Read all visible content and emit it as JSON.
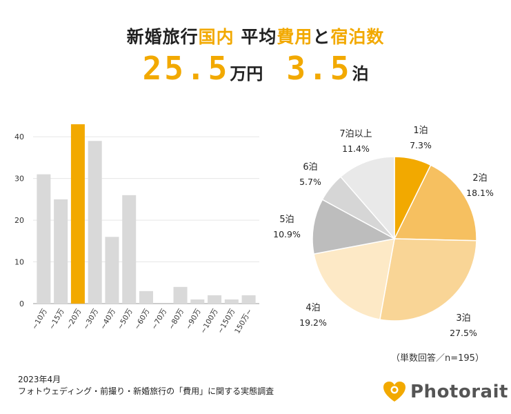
{
  "headline": {
    "part1": "新婚旅行",
    "part2": "国内",
    "part3": " 平均",
    "part4": "費用",
    "part5": "と",
    "part6": "宿泊数"
  },
  "stats": {
    "cost_value": "25.5",
    "cost_unit": "万円",
    "nights_value": "3.5",
    "nights_unit": "泊"
  },
  "colors": {
    "accent": "#f2a900",
    "bar_default": "#d9d9d9"
  },
  "chart_data": [
    {
      "type": "bar",
      "title": "",
      "xlabel": "",
      "ylabel": "",
      "ylim": [
        0,
        45
      ],
      "yticks": [
        0,
        10,
        20,
        30,
        40
      ],
      "grid": true,
      "categories": [
        "~10万",
        "~15万",
        "~20万",
        "~30万",
        "~40万",
        "~50万",
        "~60万",
        "~70万",
        "~80万",
        "~90万",
        "~100万",
        "~150万",
        "150万~"
      ],
      "values": [
        31,
        25,
        43,
        39,
        16,
        26,
        3,
        0,
        4,
        1,
        2,
        1,
        2
      ],
      "highlight_index": 2
    },
    {
      "type": "pie",
      "labels": [
        "1泊",
        "2泊",
        "3泊",
        "4泊",
        "5泊",
        "6泊",
        "7泊以上"
      ],
      "values": [
        7.3,
        18.1,
        27.5,
        19.2,
        10.9,
        5.7,
        11.4
      ],
      "value_labels": [
        "7.3%",
        "18.1%",
        "27.5%",
        "19.2%",
        "10.9%",
        "5.7%",
        "11.4%"
      ],
      "colors": [
        "#f2a900",
        "#f6c060",
        "#f9d596",
        "#fde9c6",
        "#bdbdbd",
        "#d6d6d6",
        "#e9e9e9"
      ],
      "note": "（単数回答／n=195）"
    }
  ],
  "footer": {
    "date": "2023年4月",
    "source": "フォトウェディング・前撮り・新婚旅行の「費用」に関する実態調査"
  },
  "brand": {
    "name": "Photorait",
    "icon": "heart-camera-icon"
  }
}
